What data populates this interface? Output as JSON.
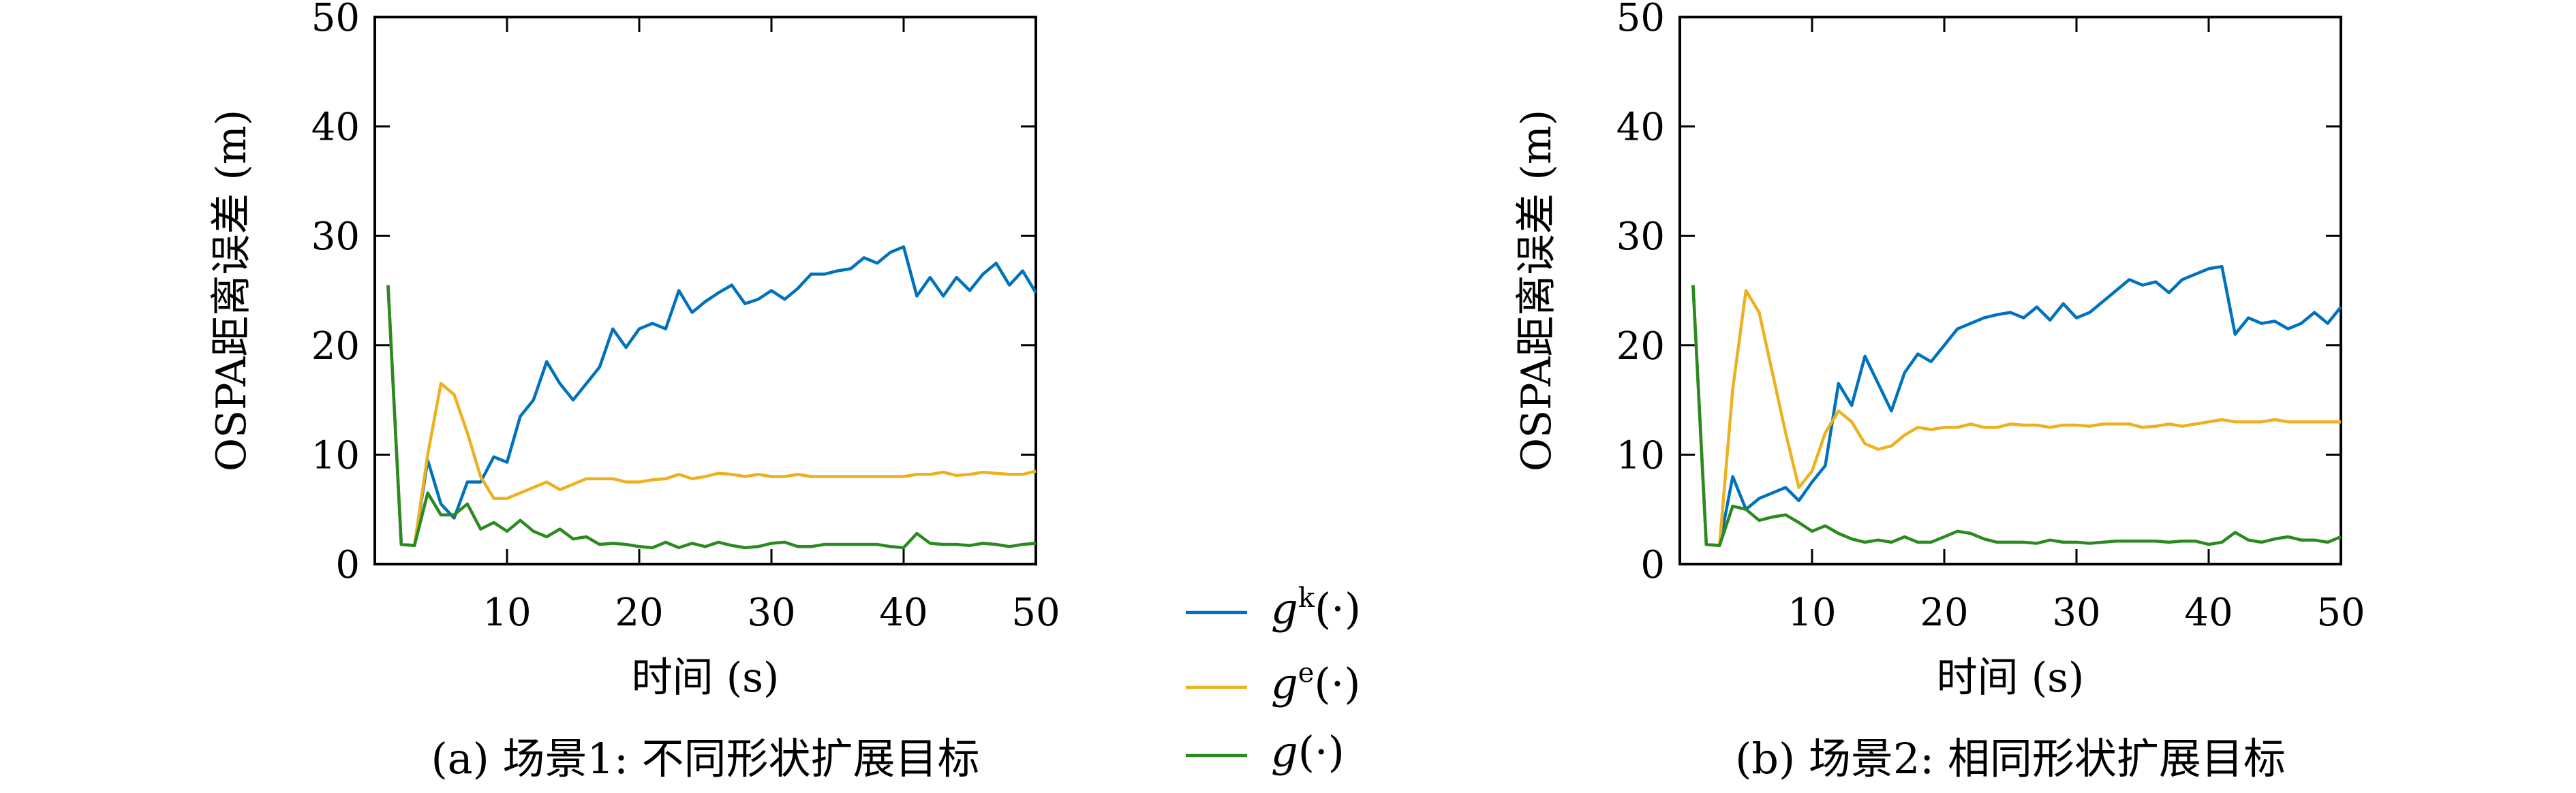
{
  "chart_data": [
    {
      "type": "line",
      "caption": "(a) 场景1: 不同形状扩展目标",
      "xlabel": "时间 (s)",
      "ylabel": "OSPA距离误差 (m)",
      "xlim": [
        0,
        50
      ],
      "ylim": [
        0,
        50
      ],
      "xticks": [
        10,
        20,
        30,
        40,
        50
      ],
      "yticks": [
        0,
        10,
        20,
        30,
        40,
        50
      ],
      "grid": false,
      "x": [
        1,
        2,
        3,
        4,
        5,
        6,
        7,
        8,
        9,
        10,
        11,
        12,
        13,
        14,
        15,
        16,
        17,
        18,
        19,
        20,
        21,
        22,
        23,
        24,
        25,
        26,
        27,
        28,
        29,
        30,
        31,
        32,
        33,
        34,
        35,
        36,
        37,
        38,
        39,
        40,
        41,
        42,
        43,
        44,
        45,
        46,
        47,
        48,
        49,
        50
      ],
      "series": [
        {
          "name": "gk",
          "color": "#0072bd",
          "values": [
            25.5,
            1.8,
            1.7,
            9.5,
            5.5,
            4.2,
            7.5,
            7.5,
            9.8,
            9.3,
            13.5,
            15.0,
            18.5,
            16.5,
            15.0,
            16.5,
            18.0,
            21.5,
            19.8,
            21.5,
            22.0,
            21.5,
            25.0,
            23.0,
            24.0,
            24.8,
            25.5,
            23.8,
            24.2,
            25.0,
            24.2,
            25.2,
            26.5,
            26.5,
            26.8,
            27.0,
            28.0,
            27.5,
            28.5,
            29.0,
            24.5,
            26.2,
            24.5,
            26.2,
            25.0,
            26.5,
            27.5,
            25.5,
            26.8,
            24.8
          ]
        },
        {
          "name": "ge",
          "color": "#edb120",
          "values": [
            25.5,
            1.8,
            1.7,
            10.0,
            16.5,
            15.5,
            12.0,
            8.0,
            6.0,
            6.0,
            6.5,
            7.0,
            7.5,
            6.8,
            7.3,
            7.8,
            7.8,
            7.8,
            7.5,
            7.5,
            7.7,
            7.8,
            8.2,
            7.8,
            8.0,
            8.3,
            8.2,
            8.0,
            8.2,
            8.0,
            8.0,
            8.2,
            8.0,
            8.0,
            8.0,
            8.0,
            8.0,
            8.0,
            8.0,
            8.0,
            8.2,
            8.2,
            8.4,
            8.1,
            8.2,
            8.4,
            8.3,
            8.2,
            8.2,
            8.5
          ]
        },
        {
          "name": "g",
          "color": "#2a8a1f",
          "values": [
            25.5,
            1.8,
            1.7,
            6.5,
            4.5,
            4.5,
            5.5,
            3.2,
            3.8,
            3.0,
            4.0,
            3.0,
            2.5,
            3.2,
            2.3,
            2.5,
            1.8,
            1.9,
            1.8,
            1.6,
            1.5,
            2.0,
            1.5,
            1.9,
            1.6,
            2.0,
            1.7,
            1.5,
            1.6,
            1.9,
            2.0,
            1.6,
            1.6,
            1.8,
            1.8,
            1.8,
            1.8,
            1.8,
            1.6,
            1.5,
            2.8,
            1.9,
            1.8,
            1.8,
            1.7,
            1.9,
            1.8,
            1.6,
            1.8,
            1.9
          ]
        }
      ]
    },
    {
      "type": "line",
      "caption": "(b) 场景2: 相同形状扩展目标",
      "xlabel": "时间 (s)",
      "ylabel": "OSPA距离误差 (m)",
      "xlim": [
        0,
        50
      ],
      "ylim": [
        0,
        50
      ],
      "xticks": [
        10,
        20,
        30,
        40,
        50
      ],
      "yticks": [
        0,
        10,
        20,
        30,
        40,
        50
      ],
      "grid": false,
      "x": [
        1,
        2,
        3,
        4,
        5,
        6,
        7,
        8,
        9,
        10,
        11,
        12,
        13,
        14,
        15,
        16,
        17,
        18,
        19,
        20,
        21,
        22,
        23,
        24,
        25,
        26,
        27,
        28,
        29,
        30,
        31,
        32,
        33,
        34,
        35,
        36,
        37,
        38,
        39,
        40,
        41,
        42,
        43,
        44,
        45,
        46,
        47,
        48,
        49,
        50
      ],
      "series": [
        {
          "name": "gk",
          "color": "#0072bd",
          "values": [
            25.5,
            1.8,
            1.7,
            8.0,
            5.0,
            6.0,
            6.5,
            7.0,
            5.8,
            7.5,
            9.0,
            16.5,
            14.5,
            19.0,
            16.5,
            14.0,
            17.5,
            19.2,
            18.5,
            20.0,
            21.5,
            22.0,
            22.5,
            22.8,
            23.0,
            22.5,
            23.5,
            22.3,
            23.8,
            22.5,
            23.0,
            24.0,
            25.0,
            26.0,
            25.5,
            25.8,
            24.8,
            26.0,
            26.5,
            27.0,
            27.2,
            21.0,
            22.5,
            22.0,
            22.2,
            21.5,
            22.0,
            23.0,
            22.0,
            23.5
          ]
        },
        {
          "name": "ge",
          "color": "#edb120",
          "values": [
            25.5,
            1.8,
            1.7,
            16.0,
            25.0,
            23.0,
            17.5,
            12.0,
            7.0,
            8.5,
            12.0,
            14.0,
            13.0,
            11.0,
            10.5,
            10.8,
            11.8,
            12.5,
            12.3,
            12.5,
            12.5,
            12.8,
            12.5,
            12.5,
            12.8,
            12.7,
            12.7,
            12.5,
            12.7,
            12.7,
            12.6,
            12.8,
            12.8,
            12.8,
            12.5,
            12.6,
            12.8,
            12.6,
            12.8,
            13.0,
            13.2,
            13.0,
            13.0,
            13.0,
            13.2,
            13.0,
            13.0,
            13.0,
            13.0,
            13.0
          ]
        },
        {
          "name": "g",
          "color": "#2a8a1f",
          "values": [
            25.5,
            1.8,
            1.7,
            5.3,
            5.0,
            4.0,
            4.3,
            4.5,
            3.8,
            3.0,
            3.5,
            2.8,
            2.3,
            2.0,
            2.2,
            2.0,
            2.5,
            2.0,
            2.0,
            2.5,
            3.0,
            2.8,
            2.3,
            2.0,
            2.0,
            2.0,
            1.9,
            2.2,
            2.0,
            2.0,
            1.9,
            2.0,
            2.1,
            2.1,
            2.1,
            2.1,
            2.0,
            2.1,
            2.1,
            1.8,
            2.0,
            2.9,
            2.2,
            2.0,
            2.3,
            2.5,
            2.2,
            2.2,
            2.0,
            2.5
          ]
        }
      ]
    }
  ],
  "legend": {
    "placement": "between-panels",
    "entries": [
      {
        "base": "g",
        "sup": "k",
        "args": "(·)",
        "color": "#0072bd"
      },
      {
        "base": "g",
        "sup": "e",
        "args": "(·)",
        "color": "#edb120"
      },
      {
        "base": "g",
        "sup": "",
        "args": "(·)",
        "color": "#2a8a1f"
      }
    ]
  }
}
